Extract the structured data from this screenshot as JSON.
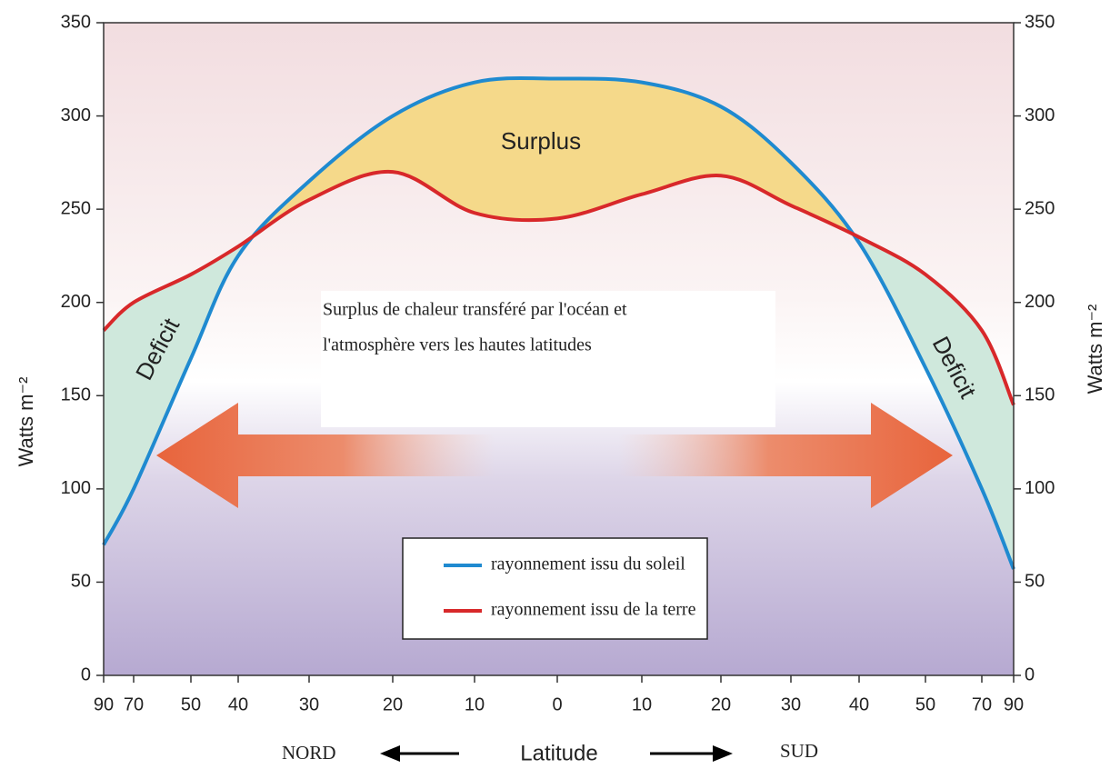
{
  "chart_data": {
    "type": "line",
    "categories": [
      "90",
      "70",
      "50",
      "40",
      "30",
      "20",
      "10",
      "0",
      "10",
      "20",
      "30",
      "40",
      "50",
      "70",
      "90"
    ],
    "series": [
      {
        "name": "rayonnement issu du soleil",
        "color": "#1f8ad0",
        "values": [
          70,
          100,
          170,
          225,
          265,
          300,
          318,
          320,
          318,
          305,
          275,
          232,
          165,
          100,
          57
        ]
      },
      {
        "name": "rayonnement issu de la terre",
        "color": "#d8282a",
        "values": [
          185,
          200,
          215,
          230,
          255,
          270,
          248,
          245,
          258,
          268,
          252,
          235,
          215,
          185,
          145
        ]
      }
    ],
    "ylim": [
      0,
      350
    ],
    "yticks": [
      0,
      50,
      100,
      150,
      200,
      250,
      300,
      350
    ],
    "y2lim": [
      0,
      350
    ],
    "y2ticks": [
      0,
      50,
      100,
      150,
      200,
      250,
      300,
      350
    ],
    "y_label": "Watts m⁻²",
    "y2_label": "Watts m⁻²",
    "annotations": {
      "surplus": "Surplus",
      "deficit_left": "Deficit",
      "deficit_right": "Deficit",
      "transfer": [
        "Surplus de chaleur transféré par l'océan et",
        "l'atmosphère vers les hautes latitudes"
      ],
      "north": "NORD",
      "x_label": "Latitude",
      "south": "SUD"
    },
    "surplus_color": "#f5d98a",
    "deficit_color": "#cfe8dc"
  }
}
